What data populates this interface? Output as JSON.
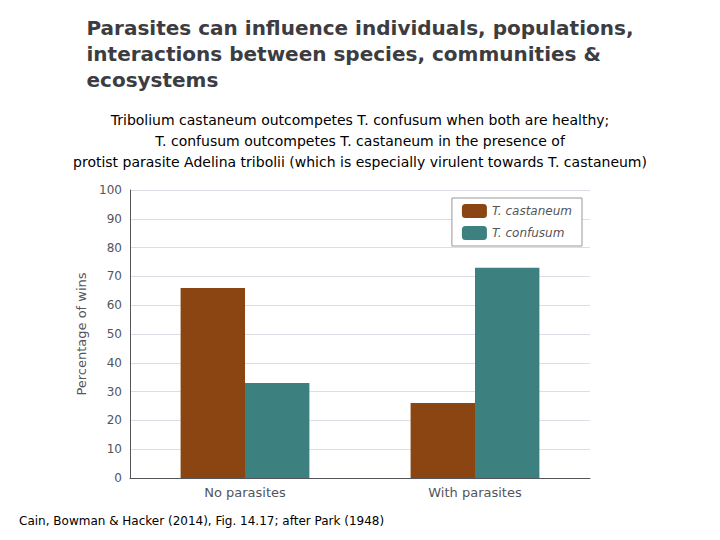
{
  "chart_data": {
    "type": "bar",
    "title": "Parasites can influence individuals, populations,\ninteractions between species, communities &\necosystems",
    "subtitle": "Tribolium castaneum outcompetes T. confusum when both are healthy;\nT. confusum outcompetes T. castaneum in the presence of\nprotist parasite Adelina tribolii (which is especially virulent towards T. castaneum)",
    "categories": [
      "No parasites",
      "With parasites"
    ],
    "series": [
      {
        "name": "T. castaneum",
        "color": "#8B4513",
        "values": [
          66,
          26
        ]
      },
      {
        "name": "T. confusum",
        "color": "#3d8080",
        "values": [
          33,
          73
        ]
      }
    ],
    "ylabel": "Percentage of wins",
    "ylim": [
      0,
      100
    ],
    "yticks": [
      0,
      10,
      20,
      30,
      40,
      50,
      60,
      70,
      80,
      90,
      100
    ],
    "grid": true,
    "legend": "upper right",
    "annotations": [
      "Cain, Bowman & Hacker (2014), Fig. 14.17; after Park (1948)"
    ]
  }
}
